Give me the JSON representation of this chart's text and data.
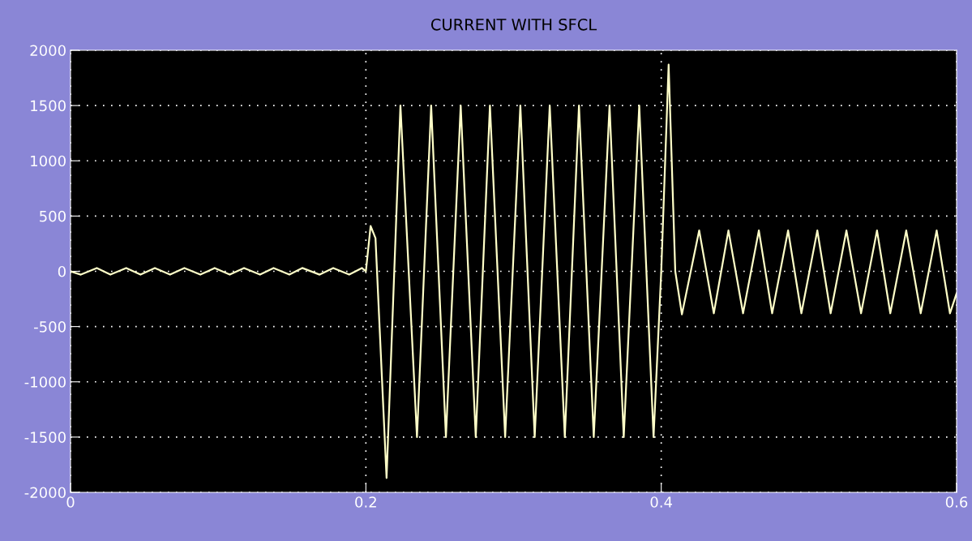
{
  "chart_data": {
    "type": "line",
    "title": "CURRENT WITH SFCL",
    "x": [
      0,
      0.007,
      0.0178,
      0.027,
      0.0377,
      0.0474,
      0.0571,
      0.0674,
      0.0771,
      0.0879,
      0.0976,
      0.1078,
      0.1175,
      0.1283,
      0.1375,
      0.1482,
      0.1569,
      0.1687,
      0.1779,
      0.1887,
      0.1973,
      0.2,
      0.2032,
      0.2065,
      0.214,
      0.2234,
      0.2346,
      0.2442,
      0.2542,
      0.2642,
      0.2744,
      0.284,
      0.2943,
      0.3046,
      0.3143,
      0.3245,
      0.3347,
      0.3443,
      0.3543,
      0.365,
      0.3746,
      0.3851,
      0.3948,
      0.4,
      0.405,
      0.4095,
      0.414,
      0.4257,
      0.4356,
      0.4455,
      0.4554,
      0.4661,
      0.4751,
      0.4859,
      0.4949,
      0.5057,
      0.5147,
      0.5254,
      0.5353,
      0.5461,
      0.5551,
      0.5659,
      0.5757,
      0.5865,
      0.5955,
      0.6
    ],
    "series": [
      {
        "color": "#ffffc8",
        "values": [
          0,
          -30,
          30,
          -30,
          30,
          -30,
          30,
          -30,
          30,
          -30,
          30,
          -30,
          30,
          -30,
          30,
          -30,
          30,
          -30,
          30,
          -30,
          30,
          0,
          410,
          300,
          -1870,
          1500,
          -1500,
          1500,
          -1500,
          1500,
          -1500,
          1500,
          -1500,
          1500,
          -1500,
          1500,
          -1500,
          1500,
          -1500,
          1500,
          -1500,
          1500,
          -1500,
          0,
          1870,
          0,
          -390,
          370,
          -380,
          370,
          -380,
          370,
          -380,
          370,
          -380,
          370,
          -380,
          370,
          -380,
          370,
          -380,
          370,
          -380,
          370,
          -380,
          -200
        ]
      }
    ],
    "xlim": [
      0,
      0.6
    ],
    "xticks": [
      0,
      0.2,
      0.4,
      0.6
    ],
    "ylim": [
      -2000,
      2000
    ],
    "yticks": [
      -2000,
      -1500,
      -1000,
      -500,
      0,
      500,
      1000,
      1500,
      2000
    ],
    "grid": true,
    "line_style": "solid"
  }
}
